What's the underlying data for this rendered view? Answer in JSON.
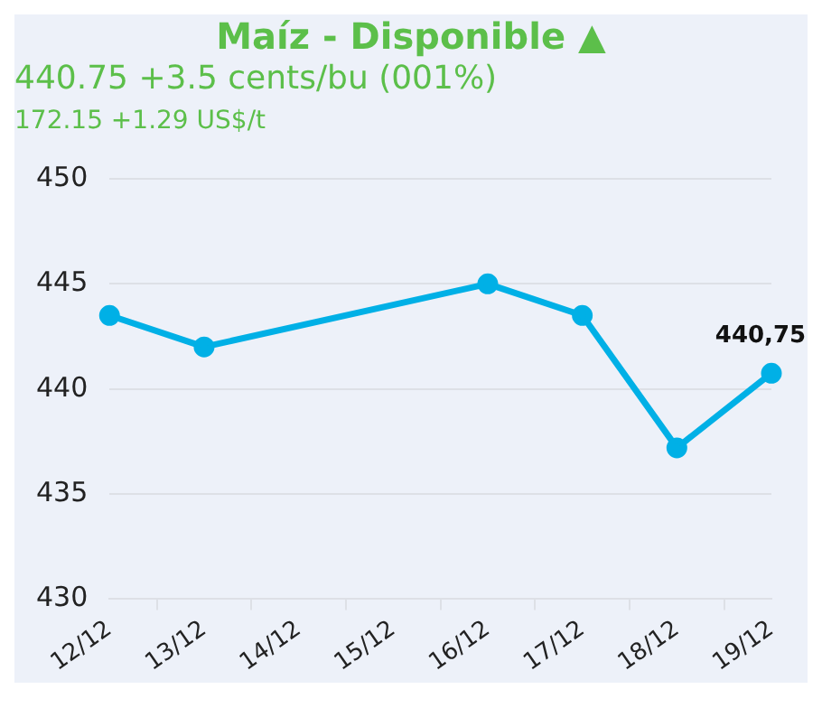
{
  "chart_data": {
    "type": "line",
    "title": "Maíz - Disponible ▲",
    "subtitle": "440.75 +3.5 cents/bu (001%)",
    "annotations": [
      "172.15 +1.29 US$/t"
    ],
    "categories": [
      "12/12",
      "13/12",
      "14/12",
      "15/12",
      "16/12",
      "17/12",
      "18/12",
      "19/12"
    ],
    "series": [
      {
        "color": "#00b0e6",
        "values": [
          443.5,
          442.0,
          null,
          null,
          445.0,
          443.5,
          437.2,
          440.75
        ],
        "value_labels": [
          null,
          null,
          null,
          null,
          null,
          null,
          null,
          "440,75"
        ]
      }
    ],
    "ylim": [
      430,
      450
    ],
    "yticks": [
      430,
      435,
      440,
      445,
      450
    ],
    "grid": "y",
    "legend": false,
    "marker": "circle",
    "line_style": "solid"
  }
}
